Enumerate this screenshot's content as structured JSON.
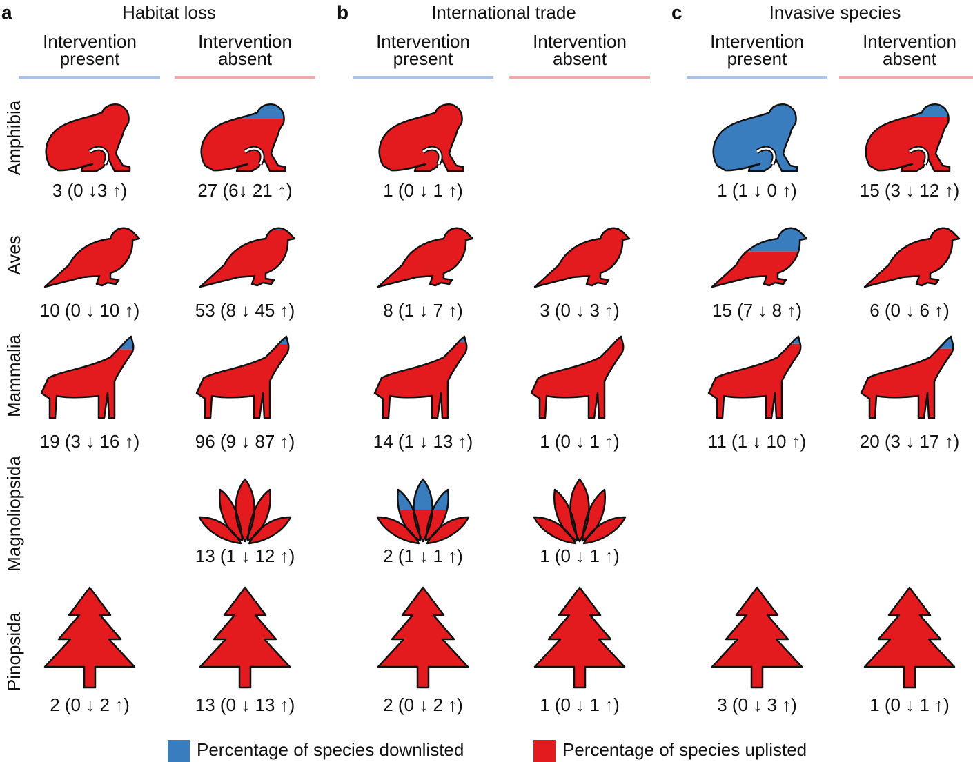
{
  "panels": [
    {
      "letter": "a",
      "title": "Habitat loss",
      "columns": [
        {
          "label": "Intervention present",
          "color": "#a9c4e8",
          "cells": [
            {
              "total": 3,
              "down": 0,
              "up": 3,
              "label": "3 (0 ↓3 ↑)"
            },
            {
              "total": 10,
              "down": 0,
              "up": 10,
              "label": "10 (0 ↓ 10 ↑)"
            },
            {
              "total": 19,
              "down": 3,
              "up": 16,
              "label": "19 (3 ↓ 16 ↑)"
            },
            null,
            {
              "total": 2,
              "down": 0,
              "up": 2,
              "label": "2 (0 ↓ 2 ↑)"
            }
          ]
        },
        {
          "label": "Intervention absent",
          "color": "#f2a9a9",
          "cells": [
            {
              "total": 27,
              "down": 6,
              "up": 21,
              "label": "27 (6↓ 21 ↑)"
            },
            {
              "total": 53,
              "down": 8,
              "up": 45,
              "label": "53 (8 ↓ 45 ↑)"
            },
            {
              "total": 96,
              "down": 9,
              "up": 87,
              "label": "96 (9 ↓ 87 ↑)"
            },
            {
              "total": 13,
              "down": 1,
              "up": 12,
              "label": "13 (1 ↓ 12 ↑)"
            },
            {
              "total": 13,
              "down": 0,
              "up": 13,
              "label": "13 (0 ↓ 13 ↑)"
            }
          ]
        }
      ]
    },
    {
      "letter": "b",
      "title": "International trade",
      "columns": [
        {
          "label": "Intervention present",
          "color": "#a9c4e8",
          "cells": [
            {
              "total": 1,
              "down": 0,
              "up": 1,
              "label": "1 (0 ↓ 1 ↑)"
            },
            {
              "total": 8,
              "down": 1,
              "up": 7,
              "label": "8 (1 ↓ 7 ↑)"
            },
            {
              "total": 14,
              "down": 1,
              "up": 13,
              "label": "14 (1 ↓ 13 ↑)"
            },
            {
              "total": 2,
              "down": 1,
              "up": 1,
              "label": "2 (1 ↓ 1 ↑)"
            },
            {
              "total": 2,
              "down": 0,
              "up": 2,
              "label": "2 (0 ↓ 2 ↑)"
            }
          ]
        },
        {
          "label": "Intervention absent",
          "color": "#f2a9a9",
          "cells": [
            null,
            {
              "total": 3,
              "down": 0,
              "up": 3,
              "label": "3 (0 ↓ 3 ↑)"
            },
            {
              "total": 1,
              "down": 0,
              "up": 1,
              "label": "1 (0 ↓ 1 ↑)"
            },
            {
              "total": 1,
              "down": 0,
              "up": 1,
              "label": "1 (0 ↓ 1 ↑)"
            },
            {
              "total": 1,
              "down": 0,
              "up": 1,
              "label": "1 (0 ↓ 1 ↑)"
            }
          ]
        }
      ]
    },
    {
      "letter": "c",
      "title": "Invasive species",
      "columns": [
        {
          "label": "Intervention present",
          "color": "#a9c4e8",
          "cells": [
            {
              "total": 1,
              "down": 1,
              "up": 0,
              "label": "1 (1 ↓ 0 ↑)"
            },
            {
              "total": 15,
              "down": 7,
              "up": 8,
              "label": "15 (7 ↓ 8 ↑)"
            },
            {
              "total": 11,
              "down": 1,
              "up": 10,
              "label": "11 (1 ↓ 10 ↑)"
            },
            null,
            {
              "total": 3,
              "down": 0,
              "up": 3,
              "label": "3 (0 ↓ 3 ↑)"
            }
          ]
        },
        {
          "label": "Intervention absent",
          "color": "#f2a9a9",
          "cells": [
            {
              "total": 15,
              "down": 3,
              "up": 12,
              "label": "15 (3 ↓ 12 ↑)"
            },
            {
              "total": 6,
              "down": 0,
              "up": 6,
              "label": "6 (0 ↓ 6 ↑)"
            },
            {
              "total": 20,
              "down": 3,
              "up": 17,
              "label": "20 (3 ↓ 17 ↑)"
            },
            null,
            {
              "total": 1,
              "down": 0,
              "up": 1,
              "label": "1 (0 ↓ 1 ↑)"
            }
          ]
        }
      ]
    }
  ],
  "rows": [
    "Amphibia",
    "Aves",
    "Mammalia",
    "Magnoliopsida",
    "Pinopsida"
  ],
  "legend": [
    {
      "label": "Percentage of species downlisted",
      "color": "#3a7dbf"
    },
    {
      "label": "Percentage of species uplisted",
      "color": "#e31b1f"
    }
  ]
}
